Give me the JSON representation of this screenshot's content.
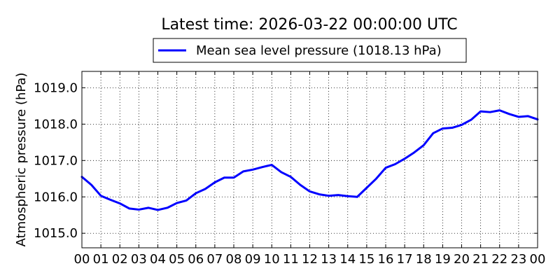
{
  "chart_data": {
    "type": "line",
    "title": "Latest time: 2026-03-22 00:00:00 UTC",
    "xlabel": "",
    "ylabel": "Atmospheric pressure (hPa)",
    "xlim": [
      0,
      24
    ],
    "ylim": [
      1014.6,
      1019.45
    ],
    "x_tick_values": [
      0,
      1,
      2,
      3,
      4,
      5,
      6,
      7,
      8,
      9,
      10,
      11,
      12,
      13,
      14,
      15,
      16,
      17,
      18,
      19,
      20,
      21,
      22,
      23,
      24
    ],
    "x_tick_labels": [
      "00",
      "01",
      "02",
      "03",
      "04",
      "05",
      "06",
      "07",
      "08",
      "09",
      "10",
      "11",
      "12",
      "13",
      "14",
      "15",
      "16",
      "17",
      "18",
      "19",
      "20",
      "21",
      "22",
      "23",
      "00"
    ],
    "y_tick_values": [
      1015.0,
      1016.0,
      1017.0,
      1018.0,
      1019.0
    ],
    "y_tick_labels": [
      "1015.0",
      "1016.0",
      "1017.0",
      "1018.0",
      "1019.0"
    ],
    "grid": true,
    "legend_position": "top-center",
    "series": [
      {
        "name": "Mean sea level pressure (1018.13 hPa)",
        "color": "#0000ff",
        "x": [
          0,
          0.5,
          1,
          1.5,
          2,
          2.5,
          3,
          3.5,
          4,
          4.5,
          5,
          5.5,
          6,
          6.5,
          7,
          7.5,
          8,
          8.5,
          9,
          9.5,
          10,
          10.5,
          11,
          11.5,
          12,
          12.5,
          13,
          13.5,
          14,
          14.5,
          15,
          15.5,
          16,
          16.5,
          17,
          17.5,
          18,
          18.5,
          19,
          19.5,
          20,
          20.5,
          21,
          21.5,
          22,
          22.5,
          23,
          23.5,
          24
        ],
        "y": [
          1016.55,
          1016.33,
          1016.03,
          1015.92,
          1015.82,
          1015.68,
          1015.65,
          1015.7,
          1015.64,
          1015.7,
          1015.83,
          1015.9,
          1016.1,
          1016.22,
          1016.4,
          1016.53,
          1016.53,
          1016.7,
          1016.75,
          1016.82,
          1016.88,
          1016.68,
          1016.55,
          1016.33,
          1016.15,
          1016.07,
          1016.03,
          1016.05,
          1016.02,
          1016.0,
          1016.25,
          1016.5,
          1016.8,
          1016.9,
          1017.05,
          1017.22,
          1017.42,
          1017.75,
          1017.88,
          1017.9,
          1017.98,
          1018.12,
          1018.35,
          1018.33,
          1018.38,
          1018.28,
          1018.2,
          1018.22,
          1018.13
        ]
      }
    ]
  }
}
